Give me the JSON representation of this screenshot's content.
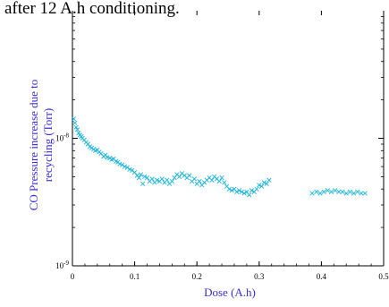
{
  "caption": "after 12 A.h conditioning.",
  "chart_data": {
    "type": "scatter",
    "xlabel": "Dose (A.h)",
    "ylabel": "CO Pressure increase due to recycling (Torr)",
    "ylabel_lines": [
      "CO Pressure increase due to",
      "recycling (Torr)"
    ],
    "xlim": [
      0,
      0.5
    ],
    "ylim": [
      1e-09,
      1e-07
    ],
    "yscale": "log",
    "x_ticks": [
      {
        "value": 0,
        "label": "0"
      },
      {
        "value": 0.1,
        "label": "0.1"
      },
      {
        "value": 0.2,
        "label": "0.2"
      },
      {
        "value": 0.3,
        "label": "0.3"
      },
      {
        "value": 0.4,
        "label": "0.4"
      },
      {
        "value": 0.5,
        "label": "0.5"
      }
    ],
    "y_ticks": [
      {
        "value": 1e-09,
        "base": "10",
        "exp": "-9"
      },
      {
        "value": 1e-08,
        "base": "10",
        "exp": "-8"
      }
    ],
    "marker_color": "#19b3d8",
    "axis_label_color": "#3a2fd0",
    "series": [
      {
        "marker": "x",
        "points": [
          [
            0.002,
            1.42e-08
          ],
          [
            0.004,
            1.32e-08
          ],
          [
            0.006,
            1.22e-08
          ],
          [
            0.008,
            1.17e-08
          ],
          [
            0.01,
            1.1e-08
          ],
          [
            0.012,
            1.06e-08
          ],
          [
            0.014,
            1.03e-08
          ],
          [
            0.016,
            1e-08
          ],
          [
            0.019,
            9.7e-09
          ],
          [
            0.022,
            9.3e-09
          ],
          [
            0.025,
            9e-09
          ],
          [
            0.028,
            8.6e-09
          ],
          [
            0.031,
            8.4e-09
          ],
          [
            0.034,
            8.2e-09
          ],
          [
            0.037,
            8e-09
          ],
          [
            0.04,
            8.1e-09
          ],
          [
            0.043,
            7.8e-09
          ],
          [
            0.046,
            7.6e-09
          ],
          [
            0.05,
            7.2e-09
          ],
          [
            0.053,
            7.4e-09
          ],
          [
            0.056,
            7.1e-09
          ],
          [
            0.06,
            7e-09
          ],
          [
            0.063,
            6.8e-09
          ],
          [
            0.066,
            6.9e-09
          ],
          [
            0.07,
            6.6e-09
          ],
          [
            0.073,
            6.5e-09
          ],
          [
            0.076,
            6.3e-09
          ],
          [
            0.08,
            6.2e-09
          ],
          [
            0.084,
            6e-09
          ],
          [
            0.088,
            5.9e-09
          ],
          [
            0.092,
            5.7e-09
          ],
          [
            0.096,
            5.6e-09
          ],
          [
            0.1,
            5.4e-09
          ],
          [
            0.104,
            5.1e-09
          ],
          [
            0.107,
            4.9e-09
          ],
          [
            0.11,
            5.2e-09
          ],
          [
            0.113,
            4.4e-09
          ],
          [
            0.116,
            5e-09
          ],
          [
            0.12,
            4.9e-09
          ],
          [
            0.124,
            4.6e-09
          ],
          [
            0.128,
            4.8e-09
          ],
          [
            0.132,
            4.5e-09
          ],
          [
            0.136,
            4.7e-09
          ],
          [
            0.14,
            4.6e-09
          ],
          [
            0.144,
            4.8e-09
          ],
          [
            0.148,
            4.5e-09
          ],
          [
            0.152,
            4.7e-09
          ],
          [
            0.156,
            4.4e-09
          ],
          [
            0.16,
            4.6e-09
          ],
          [
            0.164,
            4.9e-09
          ],
          [
            0.168,
            5.2e-09
          ],
          [
            0.172,
            5e-09
          ],
          [
            0.176,
            5.3e-09
          ],
          [
            0.18,
            5.1e-09
          ],
          [
            0.184,
            4.9e-09
          ],
          [
            0.188,
            5.1e-09
          ],
          [
            0.192,
            4.6e-09
          ],
          [
            0.196,
            4.8e-09
          ],
          [
            0.2,
            4.4e-09
          ],
          [
            0.204,
            4.6e-09
          ],
          [
            0.208,
            4.3e-09
          ],
          [
            0.212,
            4.5e-09
          ],
          [
            0.216,
            4.7e-09
          ],
          [
            0.22,
            4.9e-09
          ],
          [
            0.224,
            4.7e-09
          ],
          [
            0.228,
            5e-09
          ],
          [
            0.232,
            4.8e-09
          ],
          [
            0.236,
            4.6e-09
          ],
          [
            0.24,
            4.9e-09
          ],
          [
            0.244,
            4.5e-09
          ],
          [
            0.248,
            4.2e-09
          ],
          [
            0.252,
            4e-09
          ],
          [
            0.256,
            3.9e-09
          ],
          [
            0.26,
            4e-09
          ],
          [
            0.264,
            3.8e-09
          ],
          [
            0.268,
            3.9e-09
          ],
          [
            0.272,
            3.8e-09
          ],
          [
            0.276,
            3.7e-09
          ],
          [
            0.28,
            3.8e-09
          ],
          [
            0.284,
            3.6e-09
          ],
          [
            0.288,
            3.9e-09
          ],
          [
            0.292,
            3.8e-09
          ],
          [
            0.296,
            4e-09
          ],
          [
            0.3,
            4.3e-09
          ],
          [
            0.304,
            4.2e-09
          ],
          [
            0.308,
            4.5e-09
          ],
          [
            0.312,
            4.4e-09
          ],
          [
            0.316,
            4.7e-09
          ],
          [
            0.385,
            3.7e-09
          ],
          [
            0.392,
            3.8e-09
          ],
          [
            0.398,
            3.7e-09
          ],
          [
            0.404,
            3.8e-09
          ],
          [
            0.41,
            3.9e-09
          ],
          [
            0.416,
            3.8e-09
          ],
          [
            0.422,
            3.9e-09
          ],
          [
            0.428,
            3.8e-09
          ],
          [
            0.434,
            3.8e-09
          ],
          [
            0.44,
            3.7e-09
          ],
          [
            0.446,
            3.8e-09
          ],
          [
            0.452,
            3.7e-09
          ],
          [
            0.458,
            3.8e-09
          ],
          [
            0.464,
            3.7e-09
          ],
          [
            0.47,
            3.7e-09
          ]
        ]
      }
    ]
  }
}
